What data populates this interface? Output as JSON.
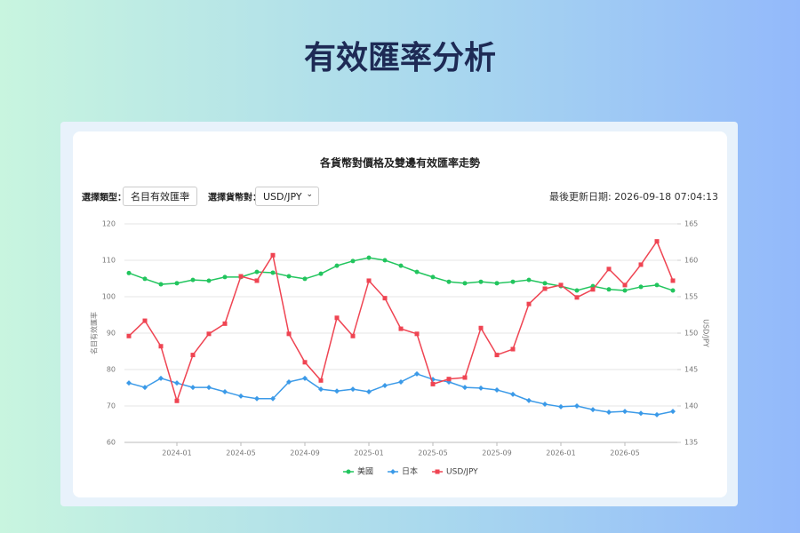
{
  "page": {
    "heading": "有效匯率分析",
    "controls": {
      "type_label": "選擇類型：",
      "type_value": "名目有效匯率",
      "pair_label": "選擇貨幣對：",
      "pair_value": "USD/JPY",
      "updated": "最後更新日期: 2026-09-18 07:04:13"
    }
  },
  "chart_data": {
    "type": "line",
    "title": "各貨幣對價格及雙邊有效匯率走勢",
    "ylabel": "名目有效匯率",
    "y2label": "USD/JPY",
    "categories": [
      null,
      null,
      null,
      "2024-01",
      null,
      null,
      null,
      "2024-05",
      null,
      null,
      null,
      "2024-09",
      null,
      null,
      null,
      "2025-01",
      null,
      null,
      null,
      "2025-05",
      null,
      null,
      null,
      "2025-09",
      null,
      null,
      null,
      "2026-01",
      null,
      null,
      null,
      "2026-05",
      null,
      null,
      null
    ],
    "ylim": [
      60,
      120
    ],
    "yticks": [
      60,
      70,
      80,
      90,
      100,
      110,
      120
    ],
    "y2lim": [
      135,
      165
    ],
    "y2ticks": [
      135,
      140,
      145,
      150,
      155,
      160,
      165
    ],
    "grid": true,
    "legend": "bottom",
    "series": [
      {
        "name": "美國",
        "color": "#22c55e",
        "marker": "circle",
        "values": [
          106.5,
          104.9,
          103.4,
          103.7,
          104.6,
          104.4,
          105.4,
          105.4,
          106.8,
          106.6,
          105.6,
          104.9,
          106.3,
          108.5,
          109.8,
          110.7,
          110,
          108.5,
          106.8,
          105.4,
          104.1,
          103.7,
          104.1,
          103.7,
          104.1,
          104.6,
          103.7,
          102.9,
          101.7,
          102.9,
          102,
          101.7,
          102.7,
          103.2,
          101.7
        ]
      },
      {
        "name": "日本",
        "color": "#3b9ae8",
        "marker": "diamond",
        "values": [
          76.3,
          75.1,
          77.6,
          76.3,
          75.1,
          75.1,
          73.9,
          72.7,
          72,
          72,
          76.6,
          77.6,
          74.6,
          74.1,
          74.6,
          73.9,
          75.6,
          76.6,
          78.8,
          77.3,
          76.6,
          75.1,
          74.9,
          74.4,
          73.2,
          71.5,
          70.5,
          69.8,
          70,
          69,
          68.3,
          68.5,
          68,
          67.6,
          68.5
        ]
      },
      {
        "name": "USD/JPY",
        "color": "#ef4452",
        "marker": "square",
        "axis": "y2",
        "values": [
          149.6,
          151.7,
          148.2,
          140.7,
          147,
          149.9,
          151.3,
          157.8,
          157.2,
          160.7,
          149.9,
          146,
          143.5,
          152.1,
          149.6,
          157.2,
          154.8,
          150.6,
          149.9,
          143,
          143.7,
          143.9,
          150.7,
          147,
          147.8,
          154,
          156.1,
          156.6,
          154.9,
          156,
          158.8,
          156.6,
          159.4,
          162.6,
          157.2
        ]
      }
    ]
  }
}
